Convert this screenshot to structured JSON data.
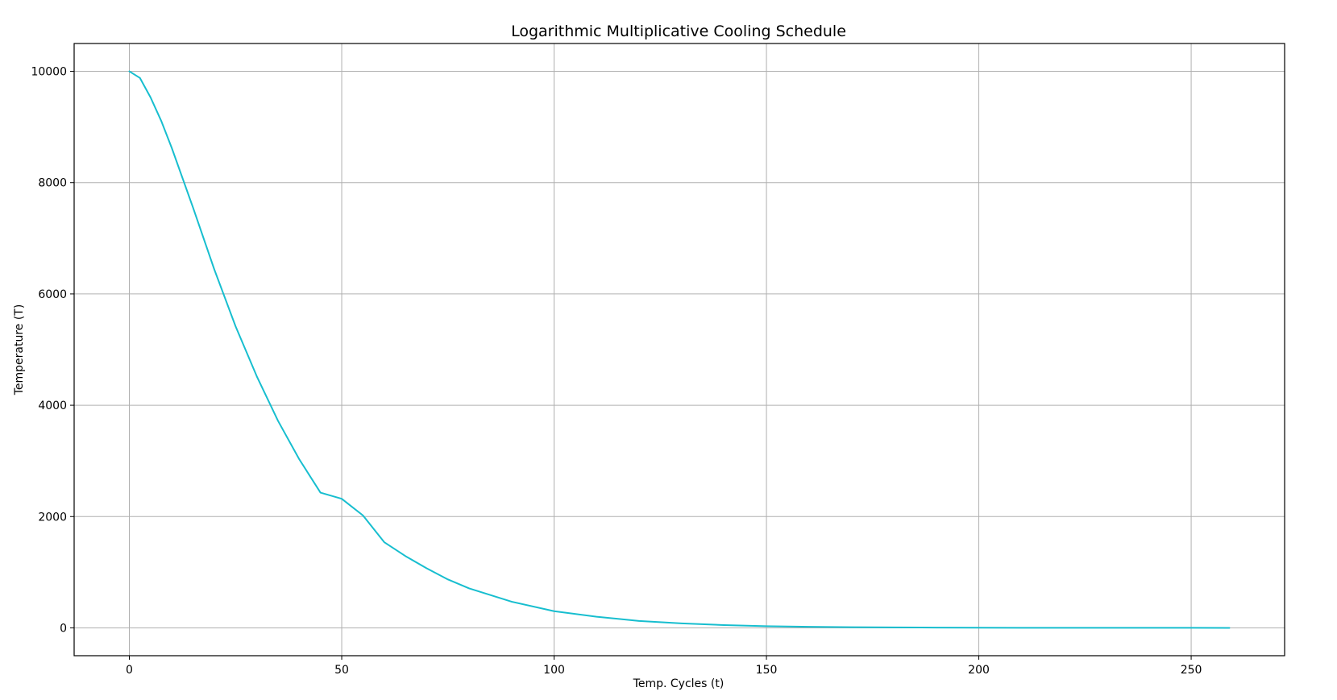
{
  "chart_data": {
    "type": "line",
    "title": "Logarithmic Multiplicative Cooling Schedule",
    "xlabel": "Temp. Cycles (t)",
    "ylabel": "Temperature (T)",
    "xlim": [
      -13,
      272
    ],
    "ylim": [
      -500,
      10500
    ],
    "xticks": [
      0,
      50,
      100,
      150,
      200,
      250
    ],
    "yticks": [
      0,
      2000,
      4000,
      6000,
      8000,
      10000
    ],
    "grid": true,
    "legend": "none",
    "series": [
      {
        "color": "#17becf",
        "x": [
          0,
          2.5,
          5,
          7.5,
          10,
          15,
          20,
          25,
          30,
          35,
          40,
          45,
          50,
          55,
          60,
          65,
          70,
          75,
          80,
          90,
          100,
          110,
          120,
          130,
          140,
          150,
          160,
          170,
          180,
          190,
          200,
          210,
          220,
          230,
          240,
          250,
          259
        ],
        "y": [
          10000,
          9880,
          9530,
          9110,
          8620,
          7550,
          6440,
          5420,
          4520,
          3720,
          3030,
          2430,
          2320,
          2020,
          1540,
          1290,
          1070,
          870,
          710,
          470,
          300,
          200,
          125,
          80,
          50,
          30,
          20,
          12,
          8,
          5,
          3,
          2,
          1,
          1,
          0.5,
          0.3,
          0.2
        ]
      }
    ]
  }
}
